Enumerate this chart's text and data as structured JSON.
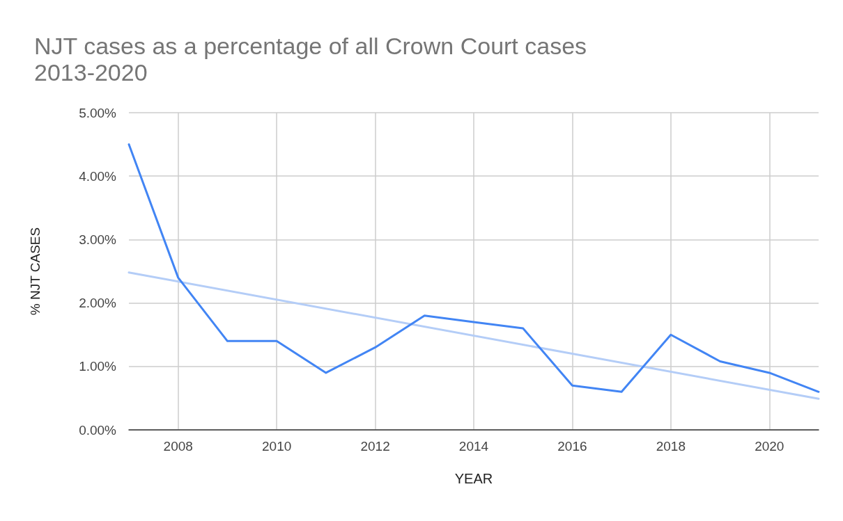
{
  "chart_data": {
    "type": "line",
    "title": "NJT cases as a percentage of all Crown Court cases\n2013-2020",
    "xlabel": "YEAR",
    "ylabel": "% NJT CASES",
    "x": [
      2007,
      2008,
      2009,
      2010,
      2011,
      2012,
      2013,
      2014,
      2015,
      2016,
      2017,
      2018,
      2019,
      2020,
      2021
    ],
    "series": [
      {
        "color": "#4285f4",
        "values": [
          4.5,
          2.4,
          1.4,
          1.4,
          0.9,
          1.3,
          1.8,
          1.7,
          1.6,
          0.7,
          0.6,
          1.5,
          1.08,
          0.9,
          0.6
        ]
      },
      {
        "color": "#b4cdf7",
        "x": [
          2007,
          2021
        ],
        "values": [
          2.48,
          0.49
        ]
      }
    ],
    "xlim": [
      2007,
      2021
    ],
    "xticks": [
      2008,
      2010,
      2012,
      2014,
      2016,
      2018,
      2020
    ],
    "ylim": [
      0,
      5
    ],
    "yticks": [
      {
        "value": 0,
        "label": "0.00%"
      },
      {
        "value": 1,
        "label": "1.00%"
      },
      {
        "value": 2,
        "label": "2.00%"
      },
      {
        "value": 3,
        "label": "3.00%"
      },
      {
        "value": 4,
        "label": "4.00%"
      },
      {
        "value": 5,
        "label": "5.00%"
      }
    ],
    "grid": true,
    "marker": "none",
    "line_style": "solid"
  }
}
